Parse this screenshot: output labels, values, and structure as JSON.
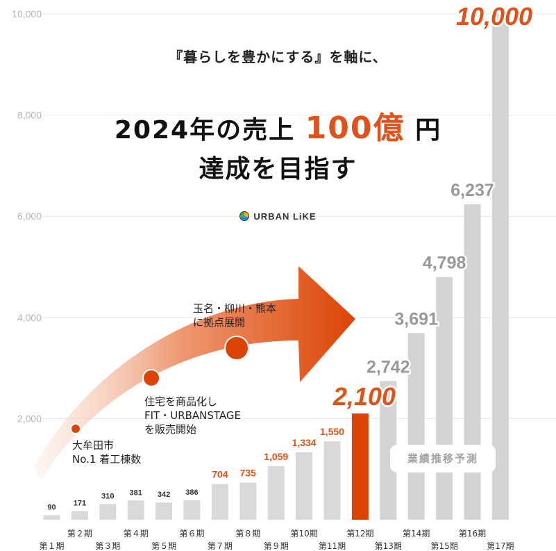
{
  "headline": {
    "sub": "『暮らしを豊かにする』を軸に、",
    "line1_before": "2024年の売上",
    "line1_accent": "100億",
    "line1_after": "円",
    "line2": "達成を目指す"
  },
  "brand": {
    "name": "URBAN LiKE"
  },
  "annotations": {
    "milestone1": "大牟田市\nNo.1 着工棟数",
    "milestone2": "住宅を商品化し\nFIT・URBANSTAGE\nを販売開始",
    "milestone3": "玉名・柳川・熊本\nに拠点展開",
    "forecast_label": "業績推移予測"
  },
  "colors": {
    "actual": "#d9d9d9",
    "highlight": "#dc4405",
    "accent_text": "#e0521a",
    "forecast": "#d4d4d4",
    "grid": "#e6e6e6"
  },
  "chart_data": {
    "type": "bar",
    "categories": [
      "第１期",
      "第２期",
      "第３期",
      "第４期",
      "第５期",
      "第６期",
      "第７期",
      "第８期",
      "第９期",
      "第10期",
      "第11期",
      "第12期",
      "第13期",
      "第14期",
      "第15期",
      "第16期",
      "第17期"
    ],
    "values": [
      90,
      171,
      310,
      381,
      342,
      386,
      704,
      735,
      1059,
      1334,
      1550,
      2100,
      2742,
      3691,
      4798,
      6237,
      10000
    ],
    "value_labels": [
      "90",
      "171",
      "310",
      "381",
      "342",
      "386",
      "704",
      "735",
      "1,059",
      "1,334",
      "1,550",
      "2,100",
      "2,742",
      "3,691",
      "4,798",
      "6,237",
      "10,000"
    ],
    "highlight_index": 11,
    "forecast_from_index": 12,
    "y_ticks": [
      "2,000",
      "4,000",
      "6,000",
      "8,000",
      "10,000"
    ],
    "ylim": [
      0,
      10000
    ],
    "grid": true
  }
}
